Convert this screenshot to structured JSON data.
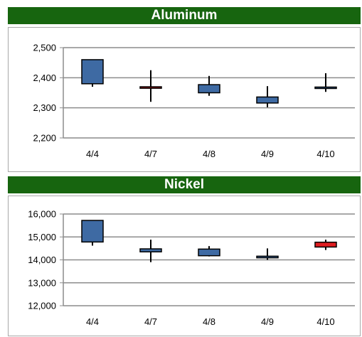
{
  "chart_data": [
    {
      "type": "candlestick",
      "title": "Aluminum",
      "categories": [
        "4/4",
        "4/7",
        "4/8",
        "4/9",
        "4/10"
      ],
      "ylim": [
        2200,
        2500
      ],
      "yticks": [
        "2,200",
        "2,300",
        "2,400",
        "2,500"
      ],
      "grid": true,
      "candles": [
        {
          "open": 2380,
          "close": 2460,
          "high": 2460,
          "low": 2370,
          "color": "#3e6aa3"
        },
        {
          "open": 2370,
          "close": 2365,
          "high": 2425,
          "low": 2320,
          "color": "#c0191c"
        },
        {
          "open": 2350,
          "close": 2377,
          "high": 2406,
          "low": 2340,
          "color": "#3e6aa3"
        },
        {
          "open": 2316,
          "close": 2336,
          "high": 2372,
          "low": 2302,
          "color": "#3e6aa3"
        },
        {
          "open": 2367,
          "close": 2369,
          "high": 2415,
          "low": 2353,
          "color": "#3e6aa3"
        }
      ]
    },
    {
      "type": "candlestick",
      "title": "Nickel",
      "categories": [
        "4/4",
        "4/7",
        "4/8",
        "4/9",
        "4/10"
      ],
      "ylim": [
        12000,
        16000
      ],
      "yticks": [
        "12,000",
        "13,000",
        "14,000",
        "15,000",
        "16,000"
      ],
      "grid": true,
      "candles": [
        {
          "open": 14780,
          "close": 15720,
          "high": 15720,
          "low": 14620,
          "color": "#3e6aa3"
        },
        {
          "open": 14350,
          "close": 14480,
          "high": 14880,
          "low": 13900,
          "color": "#3e6aa3"
        },
        {
          "open": 14180,
          "close": 14470,
          "high": 14600,
          "low": 14150,
          "color": "#3e6aa3"
        },
        {
          "open": 14090,
          "close": 14160,
          "high": 14500,
          "low": 14000,
          "color": "#3e6aa3"
        },
        {
          "open": 14560,
          "close": 14770,
          "high": 14880,
          "low": 14430,
          "color": "#e01d20"
        }
      ]
    }
  ]
}
